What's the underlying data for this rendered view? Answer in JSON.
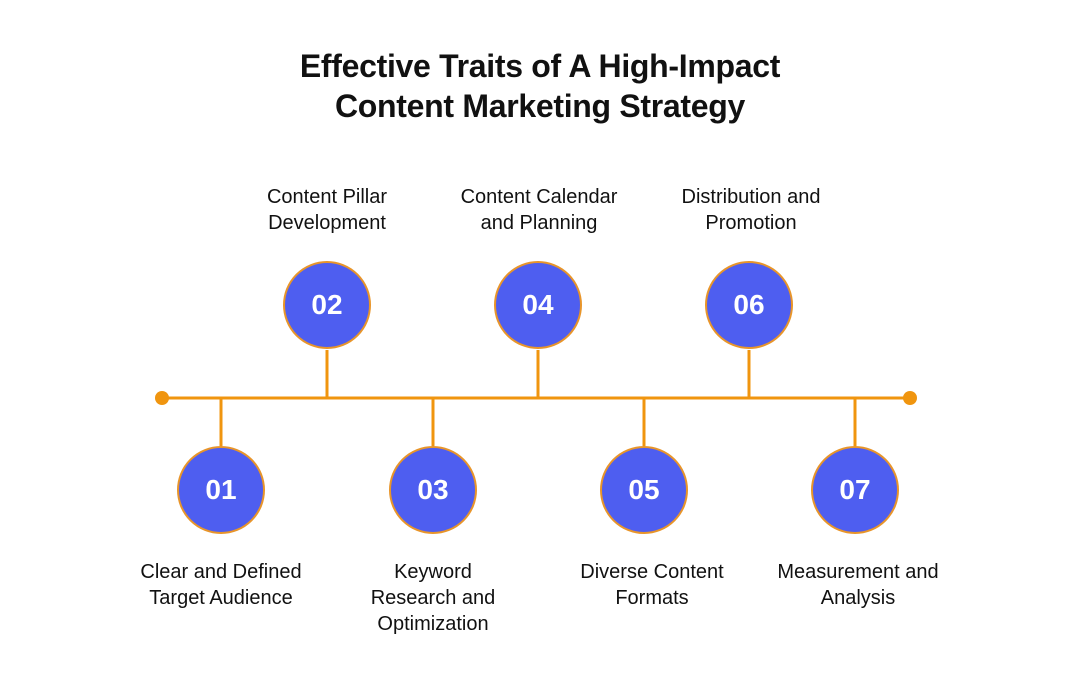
{
  "title": {
    "line1": "Effective Traits of A High-Impact",
    "line2": "Content Marketing Strategy"
  },
  "colors": {
    "line": "#f0950f",
    "circle_fill": "#4e5ef0",
    "circle_border": "#e8952a",
    "number_text": "#ffffff"
  },
  "milestones": [
    {
      "number": "01",
      "label_line1": "Clear and Defined",
      "label_line2": "Target Audience",
      "label_line3": ""
    },
    {
      "number": "02",
      "label_line1": "Content Pillar",
      "label_line2": "Development",
      "label_line3": ""
    },
    {
      "number": "03",
      "label_line1": "Keyword",
      "label_line2": "Research and",
      "label_line3": "Optimization"
    },
    {
      "number": "04",
      "label_line1": "Content Calendar",
      "label_line2": "and Planning",
      "label_line3": ""
    },
    {
      "number": "05",
      "label_line1": "Diverse Content",
      "label_line2": "Formats",
      "label_line3": ""
    },
    {
      "number": "06",
      "label_line1": "Distribution and",
      "label_line2": "Promotion",
      "label_line3": ""
    },
    {
      "number": "07",
      "label_line1": "Measurement and",
      "label_line2": "Analysis",
      "label_line3": ""
    }
  ]
}
